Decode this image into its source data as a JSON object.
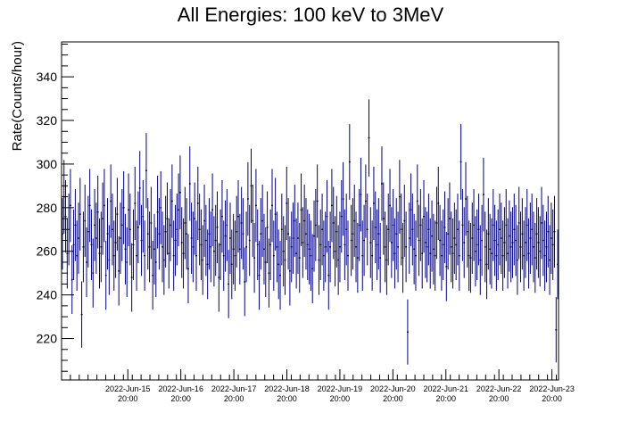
{
  "chart_data": {
    "type": "scatter",
    "title": "All Energies:  100 keV to 3MeV",
    "xlabel": "",
    "ylabel": "Rate(Counts/hour)",
    "ylim": [
      201,
      356
    ],
    "xlim": [
      "2022-Jun-14 14:00",
      "2022-Jun-23 23:00"
    ],
    "x_unit": "hourly bins",
    "yticks": [
      220,
      240,
      260,
      280,
      300,
      320,
      340
    ],
    "xticks": [
      {
        "date": "2022-Jun-15",
        "time": "20:00"
      },
      {
        "date": "2022-Jun-16",
        "time": "20:00"
      },
      {
        "date": "2022-Jun-17",
        "time": "20:00"
      },
      {
        "date": "2022-Jun-18",
        "time": "20:00"
      },
      {
        "date": "2022-Jun-19",
        "time": "20:00"
      },
      {
        "date": "2022-Jun-20",
        "time": "20:00"
      },
      {
        "date": "2022-Jun-21",
        "time": "20:00"
      },
      {
        "date": "2022-Jun-22",
        "time": "20:00"
      },
      {
        "date": "2022-Jun-23",
        "time": "20:00"
      }
    ],
    "grid": false,
    "legend": "none",
    "error_bars": "sqrt(N)",
    "marker_color": "#000000",
    "error_bar_color": "#000080",
    "series": [
      {
        "values": [
          268,
          285,
          276,
          259,
          270,
          281,
          247,
          263,
          272,
          258,
          266,
          277,
          231,
          262,
          274,
          255,
          269,
          281,
          263,
          250,
          272,
          266,
          278,
          259,
          262,
          275,
          281,
          249,
          268,
          256,
          283,
          270,
          258,
          264,
          277,
          251,
          266,
          272,
          280,
          261,
          255,
          279,
          270,
          248,
          263,
          282,
          258,
          271,
          289,
          265,
          276,
          258,
          297,
          268,
          262,
          273,
          249,
          261,
          255,
          278,
          268,
          280,
          262,
          256,
          269,
          275,
          259,
          272,
          283,
          258,
          265,
          270,
          279,
          287,
          264,
          259,
          273,
          268,
          252,
          291,
          266,
          262,
          275,
          258,
          282,
          270,
          263,
          256,
          274,
          265,
          254,
          268,
          262,
          279,
          260,
          265,
          271,
          248,
          263,
          276,
          258,
          267,
          272,
          245,
          266,
          254,
          261,
          258,
          269,
          276,
          261,
          273,
          268,
          246,
          262,
          284,
          265,
          290,
          274,
          257,
          281,
          263,
          249,
          268,
          274,
          261,
          255,
          271,
          250,
          263,
          281,
          258,
          277,
          262,
          254,
          249,
          270,
          260,
          256,
          282,
          268,
          251,
          262,
          266,
          274,
          259,
          266,
          257,
          279,
          264,
          274,
          268,
          263,
          261,
          258,
          252,
          267,
          272,
          283,
          256,
          263,
          270,
          258,
          262,
          276,
          249,
          262,
          281,
          273,
          260,
          269,
          256,
          262,
          276,
          284,
          263,
          270,
          258,
          301,
          265,
          268,
          274,
          262,
          257,
          272,
          286,
          258,
          265,
          283,
          270,
          312,
          264,
          258,
          282,
          271,
          263,
          268,
          257,
          291,
          275,
          262,
          256,
          270,
          281,
          264,
          272,
          259,
          268,
          262,
          285,
          270,
          257,
          274,
          262,
          223,
          266,
          279,
          270,
          261,
          258,
          283,
          265,
          272,
          259,
          276,
          264,
          262,
          270,
          259,
          267,
          261,
          258,
          273,
          282,
          265,
          258,
          263,
          271,
          253,
          268,
          275,
          262,
          259,
          266,
          263,
          270,
          258,
          301,
          272,
          264,
          284,
          269,
          258,
          257,
          266,
          272,
          260,
          263,
          270,
          256,
          265,
          286,
          262,
          254,
          268,
          261,
          259,
          272,
          265,
          258,
          263,
          270,
          266,
          258,
          264,
          272,
          259,
          267,
          262,
          264,
          270,
          265,
          256,
          273,
          262,
          268,
          258,
          264,
          272,
          259,
          266,
          270,
          262,
          257,
          268,
          264,
          260,
          273,
          265,
          258,
          262,
          269,
          256,
          266,
          263,
          269,
          224,
          254
        ]
      }
    ]
  }
}
